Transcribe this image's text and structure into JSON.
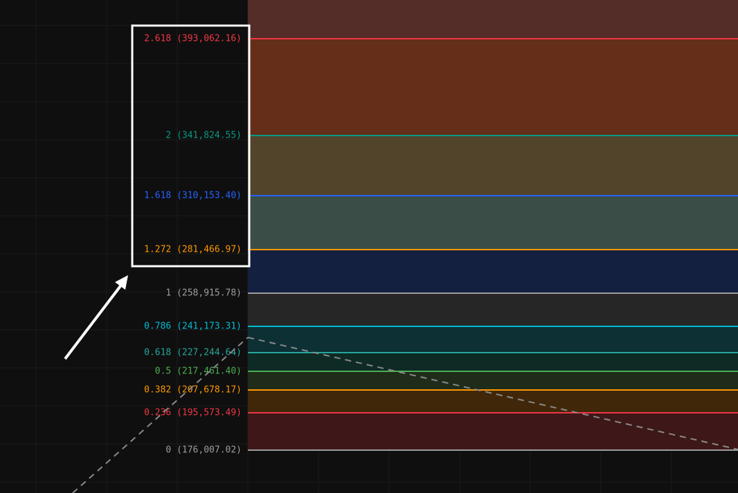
{
  "chart_data": {
    "type": "fibonacci-extension",
    "grid": true,
    "levels": [
      {
        "ratio": "2.618",
        "price": "393,062.16",
        "value": 393062.16,
        "color": "#f23645",
        "zone_color": "#542d28"
      },
      {
        "ratio": "2",
        "price": "341,824.55",
        "value": 341824.55,
        "color": "#089981",
        "zone_color": "#642e18"
      },
      {
        "ratio": "1.618",
        "price": "310,153.40",
        "value": 310153.4,
        "color": "#2962ff",
        "zone_color": "#52442a"
      },
      {
        "ratio": "1.272",
        "price": "281,466.97",
        "value": 281466.97,
        "color": "#ff9800",
        "zone_color": "#3a4d46"
      },
      {
        "ratio": "1",
        "price": "258,915.78",
        "value": 258915.78,
        "color": "#9e9e9e",
        "zone_color": "#132040"
      },
      {
        "ratio": "0.786",
        "price": "241,173.31",
        "value": 241173.31,
        "color": "#00bcd4",
        "zone_color": "#262626"
      },
      {
        "ratio": "0.618",
        "price": "227,244.64",
        "value": 227244.64,
        "color": "#26a69a",
        "zone_color": "#0c3034"
      },
      {
        "ratio": "0.5",
        "price": "217,461.40",
        "value": 217461.4,
        "color": "#4caf50",
        "zone_color": "#0e2a24"
      },
      {
        "ratio": "0.382",
        "price": "207,678.17",
        "value": 207678.17,
        "color": "#ff9800",
        "zone_color": "#1f2c1a"
      },
      {
        "ratio": "0.236",
        "price": "195,573.49",
        "value": 195573.49,
        "color": "#f23645",
        "zone_color": "#40270a"
      },
      {
        "ratio": "0",
        "price": "176,007.02",
        "value": 176007.02,
        "color": "#9e9e9e",
        "zone_color": "#3e1718"
      }
    ],
    "top_zone_color": "#542d28",
    "highlighted_levels": [
      "2.618",
      "2",
      "1.618",
      "1.272"
    ],
    "annotation": {
      "type": "arrow",
      "points_to": "highlighted-levels"
    }
  }
}
